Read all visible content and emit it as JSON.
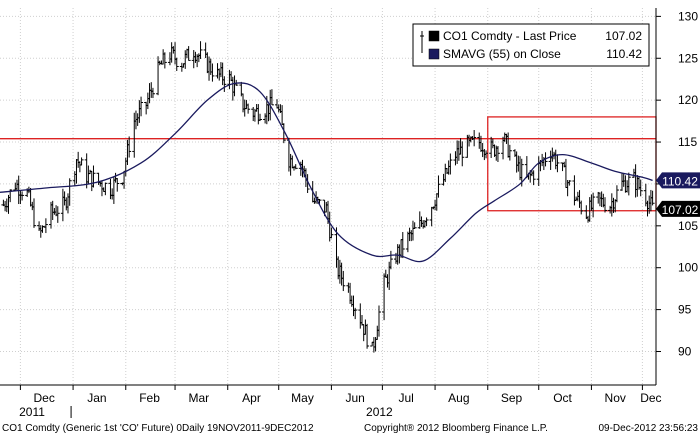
{
  "chart_data": {
    "type": "line",
    "title": "",
    "ylim": [
      86,
      131
    ],
    "y_ticks": [
      90,
      95,
      100,
      105,
      110,
      115,
      120,
      125,
      130
    ],
    "month_labels": [
      "Dec",
      "Jan",
      "Feb",
      "Mar",
      "Apr",
      "May",
      "Jun",
      "Jul",
      "Aug",
      "Sep",
      "Oct",
      "Nov",
      "Dec"
    ],
    "year_labels": [
      "2011",
      "2012"
    ],
    "legend": {
      "placement": "top-right",
      "entries": [
        {
          "label": "CO1 Comdty - Last Price",
          "value": "107.02",
          "color": "#000000"
        },
        {
          "label": "SMAVG (55) on Close",
          "value": "110.42",
          "color": "#1a1a5e"
        }
      ]
    },
    "last_value_tags": [
      {
        "text": "110.42",
        "value": 110.42,
        "bg": "#1a1a5e"
      },
      {
        "text": "107.02",
        "value": 107.02,
        "bg": "#000000"
      }
    ],
    "reference_lines": {
      "horizontal_level": 115.4,
      "box": {
        "start": "2012-09-01",
        "end": "2012-12-09",
        "top": 118.0,
        "bottom": 106.8
      }
    },
    "x_start": "2011-11-19",
    "x_end": "2012-12-09",
    "series": [
      {
        "name": "CO1 Comdty - Last Price",
        "style": "ohlc-bars",
        "color": "#000000",
        "x": [
          "2011-11-21",
          "2011-11-28",
          "2011-12-05",
          "2011-12-12",
          "2011-12-19",
          "2011-12-27",
          "2012-01-03",
          "2012-01-09",
          "2012-01-16",
          "2012-01-23",
          "2012-01-30",
          "2012-02-06",
          "2012-02-13",
          "2012-02-21",
          "2012-02-27",
          "2012-03-05",
          "2012-03-12",
          "2012-03-19",
          "2012-03-26",
          "2012-04-02",
          "2012-04-10",
          "2012-04-16",
          "2012-04-23",
          "2012-04-30",
          "2012-05-07",
          "2012-05-14",
          "2012-05-21",
          "2012-05-29",
          "2012-06-04",
          "2012-06-11",
          "2012-06-18",
          "2012-06-25",
          "2012-07-02",
          "2012-07-09",
          "2012-07-16",
          "2012-07-23",
          "2012-07-30",
          "2012-08-06",
          "2012-08-13",
          "2012-08-20",
          "2012-08-27",
          "2012-09-04",
          "2012-09-10",
          "2012-09-17",
          "2012-09-24",
          "2012-10-01",
          "2012-10-08",
          "2012-10-15",
          "2012-10-22",
          "2012-10-29",
          "2012-11-05",
          "2012-11-12",
          "2012-11-19",
          "2012-11-26",
          "2012-12-03",
          "2012-12-07"
        ],
        "close": [
          107.5,
          110.0,
          108.8,
          103.8,
          106.5,
          107.5,
          113.0,
          111.0,
          110.2,
          109.5,
          111.0,
          117.5,
          119.5,
          124.0,
          125.5,
          124.5,
          126.0,
          124.5,
          123.0,
          122.5,
          119.5,
          118.5,
          119.0,
          119.5,
          113.0,
          112.5,
          108.0,
          107.0,
          100.0,
          97.5,
          94.0,
          90.0,
          98.0,
          101.5,
          103.5,
          105.0,
          107.5,
          110.5,
          113.5,
          114.5,
          115.0,
          114.0,
          115.5,
          112.5,
          110.5,
          112.0,
          114.0,
          111.5,
          108.5,
          106.5,
          108.0,
          107.5,
          110.0,
          110.5,
          108.5,
          107.02
        ]
      },
      {
        "name": "SMAVG (55) on Close",
        "style": "line",
        "color": "#1a1a5e",
        "x": [
          "2011-11-19",
          "2011-12-15",
          "2012-01-15",
          "2012-02-10",
          "2012-03-01",
          "2012-03-20",
          "2012-04-05",
          "2012-04-20",
          "2012-05-05",
          "2012-05-20",
          "2012-06-05",
          "2012-06-25",
          "2012-07-10",
          "2012-07-25",
          "2012-08-10",
          "2012-08-25",
          "2012-09-05",
          "2012-09-20",
          "2012-10-01",
          "2012-10-15",
          "2012-11-01",
          "2012-11-15",
          "2012-12-01",
          "2012-12-07"
        ],
        "values": [
          109.0,
          109.5,
          110.2,
          112.5,
          116.0,
          120.0,
          122.0,
          121.0,
          116.0,
          109.5,
          104.0,
          101.5,
          101.5,
          100.8,
          103.5,
          106.5,
          108.0,
          110.0,
          112.5,
          113.5,
          112.5,
          111.5,
          110.8,
          110.42
        ]
      }
    ]
  },
  "footer": {
    "left": "CO1 Comdty (Generic 1st 'CO' Future) 0Daily 19NOV2011-9DEC2012",
    "middle": "Copyright® 2012 Bloomberg Finance L.P.",
    "right": "09-Dec-2012 23:56:23"
  }
}
